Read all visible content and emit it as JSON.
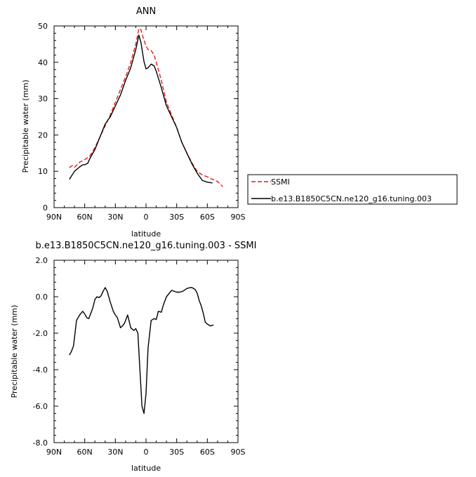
{
  "chart_data": [
    {
      "type": "line",
      "title": "ANN",
      "xlabel": "latitude",
      "ylabel": "Precipitable water  (mm)",
      "xlim": [
        90,
        -90
      ],
      "ylim": [
        0,
        50
      ],
      "xticks": [
        90,
        60,
        30,
        0,
        -30,
        -60,
        -90
      ],
      "xtick_labels": [
        "90N",
        "60N",
        "30N",
        "0",
        "30S",
        "60S",
        "90S"
      ],
      "yticks": [
        0,
        10,
        20,
        30,
        40,
        50
      ],
      "ytick_labels": [
        "0",
        "10",
        "20",
        "30",
        "40",
        "50"
      ],
      "grid": false,
      "legend": "right",
      "series": [
        {
          "name": "SSMI",
          "color": "#e41a1c",
          "dash": "dashed",
          "x": [
            75,
            72,
            70,
            65,
            60,
            55,
            50,
            45,
            40,
            35,
            30,
            25,
            20,
            15,
            10,
            7,
            5,
            3,
            0,
            -2,
            -5,
            -8,
            -10,
            -15,
            -20,
            -25,
            -30,
            -35,
            -40,
            -45,
            -50,
            -55,
            -60,
            -65,
            -70,
            -75
          ],
          "y": [
            11,
            11.6,
            11.1,
            12.5,
            13.2,
            14.2,
            16.5,
            19.5,
            22.5,
            25.5,
            29,
            32.5,
            36,
            40,
            45,
            49.3,
            49,
            47,
            44.5,
            43.5,
            43.2,
            42,
            40,
            35,
            29,
            25.5,
            22,
            18,
            15,
            12.3,
            10,
            9,
            8.5,
            7.8,
            7.2,
            5.8
          ]
        },
        {
          "name": "b.e13.B1850C5CN.ne120_g16.tuning.003",
          "color": "#000000",
          "dash": "solid",
          "x": [
            75,
            70,
            65,
            62,
            60,
            57,
            55,
            50,
            45,
            40,
            35,
            30,
            25,
            20,
            15,
            10,
            7,
            5,
            2,
            0,
            -2,
            -5,
            -8,
            -10,
            -15,
            -20,
            -25,
            -30,
            -35,
            -40,
            -45,
            -50,
            -55,
            -60,
            -65
          ],
          "y": [
            7.8,
            10,
            11.2,
            11.8,
            11.8,
            12.2,
            13.5,
            16,
            19.5,
            23,
            25,
            28,
            31,
            35,
            38.5,
            43.5,
            47.5,
            45.5,
            40.2,
            38.2,
            38.5,
            39.5,
            39,
            37.5,
            33,
            28,
            25,
            22,
            18,
            15,
            12,
            9.5,
            7.5,
            7,
            6.8
          ]
        }
      ]
    },
    {
      "type": "line",
      "title": "b.e13.B1850C5CN.ne120_g16.tuning.003  -  SSMI",
      "xlabel": "latitude",
      "ylabel": "Precipitable water  (mm)",
      "xlim": [
        90,
        -90
      ],
      "ylim": [
        -8,
        2
      ],
      "xticks": [
        90,
        60,
        30,
        0,
        -30,
        -60,
        -90
      ],
      "xtick_labels": [
        "90N",
        "60N",
        "30N",
        "0",
        "30S",
        "60S",
        "90S"
      ],
      "yticks": [
        2,
        0,
        -2,
        -4,
        -6,
        -8
      ],
      "ytick_labels": [
        "2.0",
        "0.0",
        "-2.0",
        "-4.0",
        "-6.0",
        "-8.0"
      ],
      "grid": false,
      "series": [
        {
          "color": "#000000",
          "dash": "solid",
          "x": [
            75,
            73,
            71,
            68,
            65,
            62,
            60,
            58,
            56,
            54,
            52,
            50,
            48,
            46,
            44,
            42,
            40,
            38,
            35,
            32,
            30,
            28,
            25,
            23,
            21,
            18,
            15,
            12,
            10,
            8,
            6,
            4,
            2,
            0,
            -2,
            -5,
            -8,
            -10,
            -12,
            -15,
            -17,
            -20,
            -25,
            -30,
            -33,
            -36,
            -40,
            -43,
            -45,
            -48,
            -50,
            -52,
            -54,
            -56,
            -58,
            -60,
            -63,
            -66
          ],
          "y": [
            -3.2,
            -3.0,
            -2.7,
            -1.3,
            -1.0,
            -0.8,
            -0.95,
            -1.15,
            -1.2,
            -0.9,
            -0.6,
            -0.15,
            0.0,
            -0.05,
            0.05,
            0.3,
            0.5,
            0.3,
            -0.3,
            -0.8,
            -1.0,
            -1.15,
            -1.7,
            -1.6,
            -1.45,
            -1.0,
            -1.7,
            -1.85,
            -1.75,
            -2.0,
            -4.0,
            -6.0,
            -6.4,
            -5.3,
            -2.8,
            -1.3,
            -1.2,
            -1.25,
            -0.8,
            -0.85,
            -0.45,
            0.0,
            0.35,
            0.25,
            0.25,
            0.3,
            0.45,
            0.5,
            0.5,
            0.4,
            0.2,
            -0.2,
            -0.5,
            -0.9,
            -1.4,
            -1.5,
            -1.6,
            -1.55
          ]
        }
      ]
    }
  ]
}
